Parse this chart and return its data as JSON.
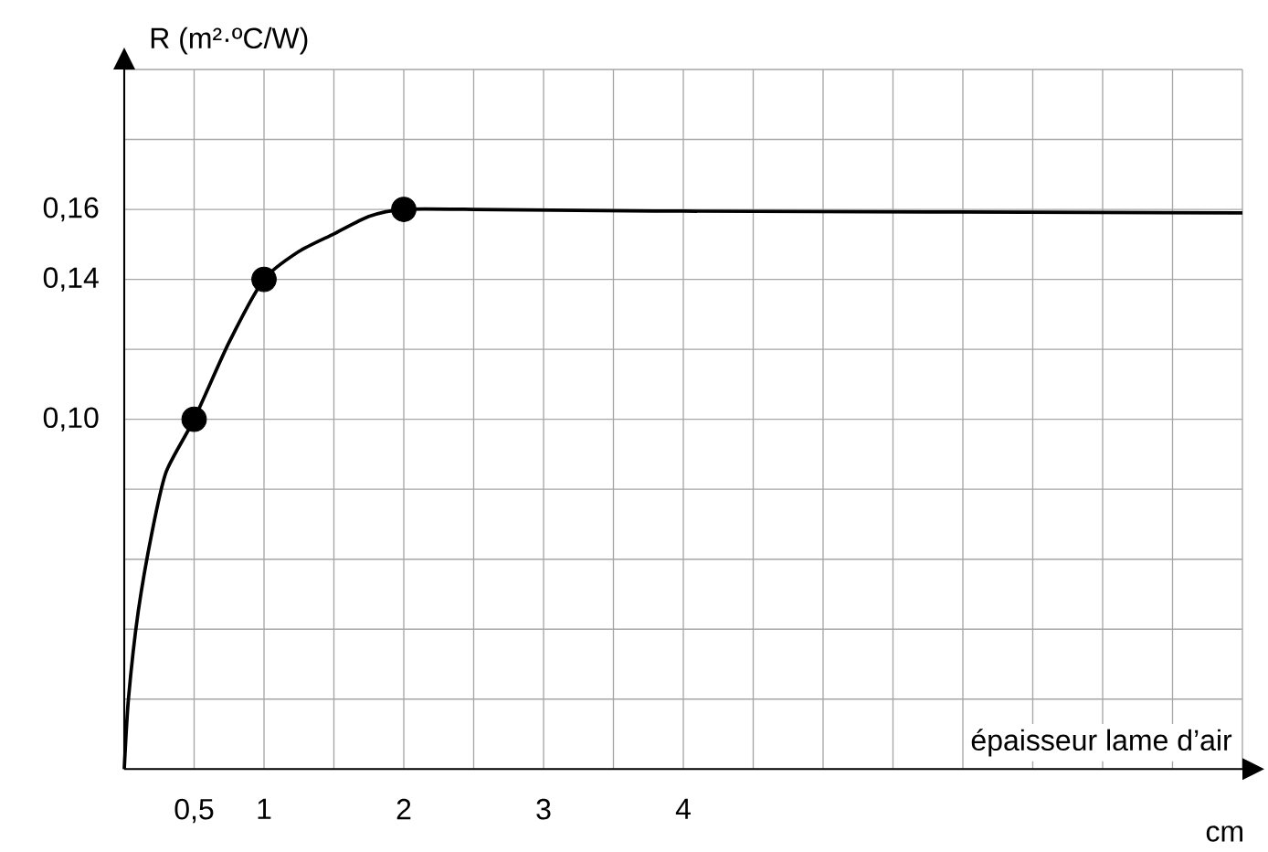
{
  "chart_data": {
    "type": "line",
    "ylabel": "R (m²·ºC/W)",
    "xlabel": "épaisseur lame d’air",
    "annotations": [
      "cm"
    ],
    "series": [
      {
        "type": "line",
        "x": [
          0,
          0.03,
          0.1,
          0.2,
          0.3,
          0.5,
          0.75,
          1,
          1.25,
          1.5,
          1.75,
          2,
          2.5,
          4,
          8
        ],
        "values": [
          0,
          0.02,
          0.045,
          0.068,
          0.085,
          0.1,
          0.122,
          0.14,
          0.148,
          0.153,
          0.158,
          0.16,
          0.16,
          0.1595,
          0.159
        ],
        "color": "#000000",
        "marker": "none"
      },
      {
        "type": "scatter",
        "x": [
          0.5,
          1,
          2
        ],
        "values": [
          0.1,
          0.14,
          0.16
        ],
        "color": "#000000",
        "marker": "circle"
      }
    ],
    "xlim": [
      0,
      8
    ],
    "ylim": [
      0,
      0.2
    ],
    "xticks": [
      {
        "value": 0.5,
        "label": "0,5"
      },
      1,
      {
        "value": 1.5,
        "label": null
      },
      2,
      {
        "value": 2.5,
        "label": null
      },
      3,
      {
        "value": 3.5,
        "label": null
      },
      4,
      {
        "value": 4.5,
        "label": null
      },
      {
        "value": 5,
        "label": null
      },
      {
        "value": 5.5,
        "label": null
      },
      {
        "value": 6,
        "label": null
      },
      {
        "value": 6.5,
        "label": null
      },
      {
        "value": 7,
        "label": null
      },
      {
        "value": 7.5,
        "label": null
      },
      {
        "value": 8,
        "label": null
      }
    ],
    "yticks": [
      {
        "value": 0.02,
        "label": null
      },
      {
        "value": 0.04,
        "label": null
      },
      {
        "value": 0.06,
        "label": null
      },
      {
        "value": 0.08,
        "label": null
      },
      {
        "value": 0.1,
        "label": "0,10"
      },
      {
        "value": 0.12,
        "label": null
      },
      {
        "value": 0.14,
        "label": "0,14"
      },
      {
        "value": 0.16,
        "label": "0,16"
      },
      {
        "value": 0.18,
        "label": null
      },
      {
        "value": 0.2,
        "label": null
      }
    ],
    "grid": true
  }
}
